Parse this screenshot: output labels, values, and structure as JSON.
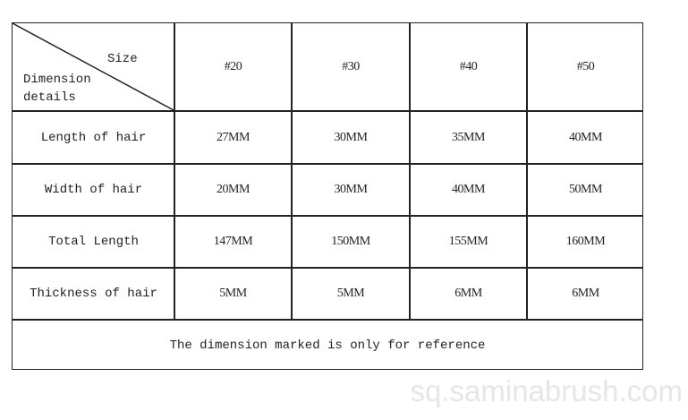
{
  "table": {
    "corner": {
      "top_label": "Size",
      "bottom_label_line1": "Dimension",
      "bottom_label_line2": "details"
    },
    "columns": [
      "#20",
      "#30",
      "#40",
      "#50"
    ],
    "rows": [
      {
        "label": "Length of hair",
        "values": [
          "27MM",
          "30MM",
          "35MM",
          "40MM"
        ]
      },
      {
        "label": "Width of hair",
        "values": [
          "20MM",
          "30MM",
          "40MM",
          "50MM"
        ]
      },
      {
        "label": "Total Length",
        "values": [
          "147MM",
          "150MM",
          "155MM",
          "160MM"
        ]
      },
      {
        "label": "Thickness of hair",
        "values": [
          "5MM",
          "5MM",
          "6MM",
          "6MM"
        ]
      }
    ],
    "note": "The dimension marked is only for reference"
  },
  "watermark": "sq.saminabrush.com"
}
